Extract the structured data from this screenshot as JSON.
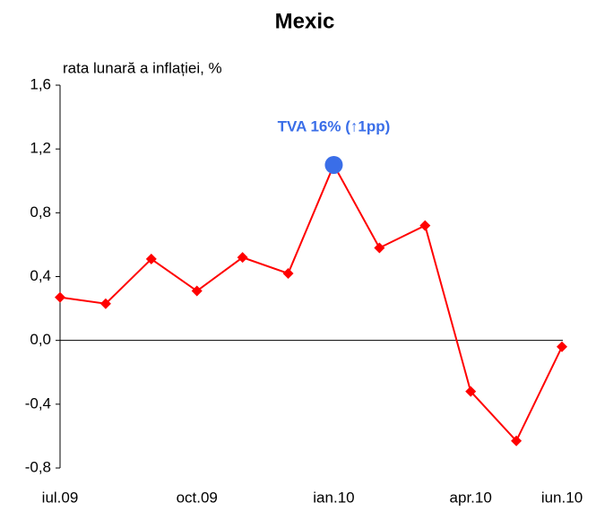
{
  "chart_data": {
    "type": "line",
    "title": "Mexic",
    "y_label": "rata lunară a inflației, %",
    "categories": [
      "iul.09",
      null,
      null,
      "oct.09",
      null,
      null,
      "ian.10",
      null,
      null,
      "apr.10",
      null,
      "iun.10"
    ],
    "series": [
      {
        "name": "rata lunară a inflației",
        "color": "#ff0000",
        "values": [
          0.27,
          0.23,
          0.51,
          0.31,
          0.52,
          0.42,
          1.1,
          0.58,
          0.72,
          -0.32,
          -0.63,
          -0.04
        ]
      }
    ],
    "ylim": [
      -0.8,
      1.6
    ],
    "yticks": [
      {
        "value": -0.8,
        "label": "-0,8"
      },
      {
        "value": -0.4,
        "label": "-0,4"
      },
      {
        "value": 0,
        "label": "0,0"
      },
      {
        "value": 0.4,
        "label": "0,4"
      },
      {
        "value": 0.8,
        "label": "0,8"
      },
      {
        "value": 1.2,
        "label": "1,2"
      },
      {
        "value": 1.6,
        "label": "1,6"
      }
    ],
    "annotation": {
      "text": "TVA 16% (↑1pp)",
      "point": 6,
      "color": "#3a6ee8"
    }
  }
}
